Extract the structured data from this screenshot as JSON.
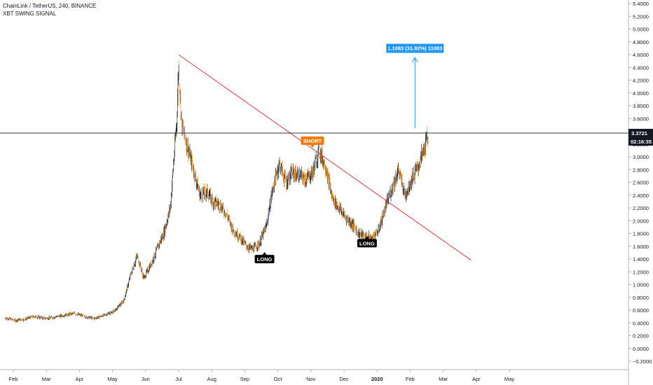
{
  "header": {
    "symbol_line": "ChainLink / TetherUS, 240, BINANCE",
    "indicator": "XBT SWING SIGNAL"
  },
  "colors": {
    "up": "#131722",
    "down": "#f7931a",
    "trendline": "#e03a3e",
    "price_line": "#131722",
    "measure": "#2196f3",
    "short_label": "#f57c00",
    "long_label": "#000000"
  },
  "chart_data": {
    "type": "line",
    "title": "ChainLink / TetherUS, 240, BINANCE",
    "xlabel": "",
    "ylabel": "",
    "ylim": [
      -0.3,
      5.4
    ],
    "x_ticks": [
      "Feb",
      "Mar",
      "Apr",
      "May",
      "Jun",
      "Jul",
      "Aug",
      "Sep",
      "Oct",
      "Nov",
      "Dec",
      "2020",
      "Feb",
      "Mar",
      "Apr",
      "May"
    ],
    "y_ticks": [
      "5.4000",
      "5.2000",
      "5.0000",
      "4.8000",
      "4.6000",
      "4.4000",
      "4.2000",
      "4.0000",
      "3.8000",
      "3.6000",
      "3.4000",
      "3.2000",
      "3.0000",
      "2.8000",
      "2.6000",
      "2.4000",
      "2.2000",
      "2.0000",
      "1.8000",
      "1.6000",
      "1.4000",
      "1.2000",
      "1.0000",
      "0.8000",
      "0.6000",
      "0.4000",
      "0.2000",
      "0.0000",
      "−0.2000"
    ],
    "y_tick_values": [
      5.4,
      5.2,
      5.0,
      4.8,
      4.6,
      4.4,
      4.2,
      4.0,
      3.8,
      3.6,
      3.4,
      3.2,
      3.0,
      2.8,
      2.6,
      2.4,
      2.2,
      2.0,
      1.8,
      1.6,
      1.4,
      1.2,
      1.0,
      0.8,
      0.6,
      0.4,
      0.2,
      0.0,
      -0.2
    ],
    "price_series": {
      "x": [
        0,
        0.3,
        0.6,
        0.9,
        1.2,
        1.5,
        1.8,
        2.1,
        2.4,
        2.7,
        3.0,
        3.3,
        3.6,
        3.8,
        4.0,
        4.2,
        4.4,
        4.6,
        4.8,
        5.0,
        5.1,
        5.2,
        5.25,
        5.3,
        5.35,
        5.5,
        5.7,
        5.9,
        6.1,
        6.3,
        6.5,
        6.7,
        6.9,
        7.1,
        7.3,
        7.5,
        7.7,
        7.9,
        8.1,
        8.3,
        8.5,
        8.7,
        8.9,
        9.1,
        9.3,
        9.5,
        9.7,
        9.9,
        10.1,
        10.3,
        10.5,
        10.7,
        10.9,
        11.1,
        11.3,
        11.5,
        11.7,
        11.9,
        12.1,
        12.3,
        12.5,
        12.7,
        12.8
      ],
      "y": [
        0.48,
        0.44,
        0.46,
        0.5,
        0.47,
        0.49,
        0.52,
        0.55,
        0.5,
        0.47,
        0.52,
        0.58,
        0.75,
        1.15,
        1.45,
        1.1,
        1.3,
        1.55,
        1.8,
        2.2,
        2.9,
        3.6,
        4.45,
        3.9,
        3.5,
        3.2,
        2.8,
        2.4,
        2.45,
        2.3,
        2.25,
        2.1,
        1.85,
        1.75,
        1.6,
        1.55,
        1.65,
        1.9,
        2.5,
        2.9,
        2.6,
        2.75,
        2.7,
        2.65,
        2.75,
        3.1,
        2.85,
        2.35,
        2.2,
        2.05,
        1.95,
        1.8,
        1.75,
        1.72,
        1.85,
        2.2,
        2.5,
        2.8,
        2.4,
        2.65,
        2.85,
        3.15,
        3.37
      ]
    },
    "trendline": {
      "from": [
        5.25,
        4.6
      ],
      "to": [
        14.1,
        1.38
      ]
    },
    "current_price": 3.3721,
    "countdown": "02:16:35",
    "signals": [
      {
        "label": "LONG",
        "x": 7.85,
        "y": 1.53,
        "position": "below",
        "type": "long"
      },
      {
        "label": "SHORT",
        "x": 9.3,
        "y": 3.12,
        "position": "above",
        "type": "short"
      },
      {
        "label": "LONG",
        "x": 10.95,
        "y": 1.78,
        "position": "below",
        "type": "long"
      }
    ],
    "measure": {
      "label": "1.1083 (31.82%) 11083",
      "x": 12.4,
      "from_y": 3.45,
      "to_y": 4.55
    }
  }
}
